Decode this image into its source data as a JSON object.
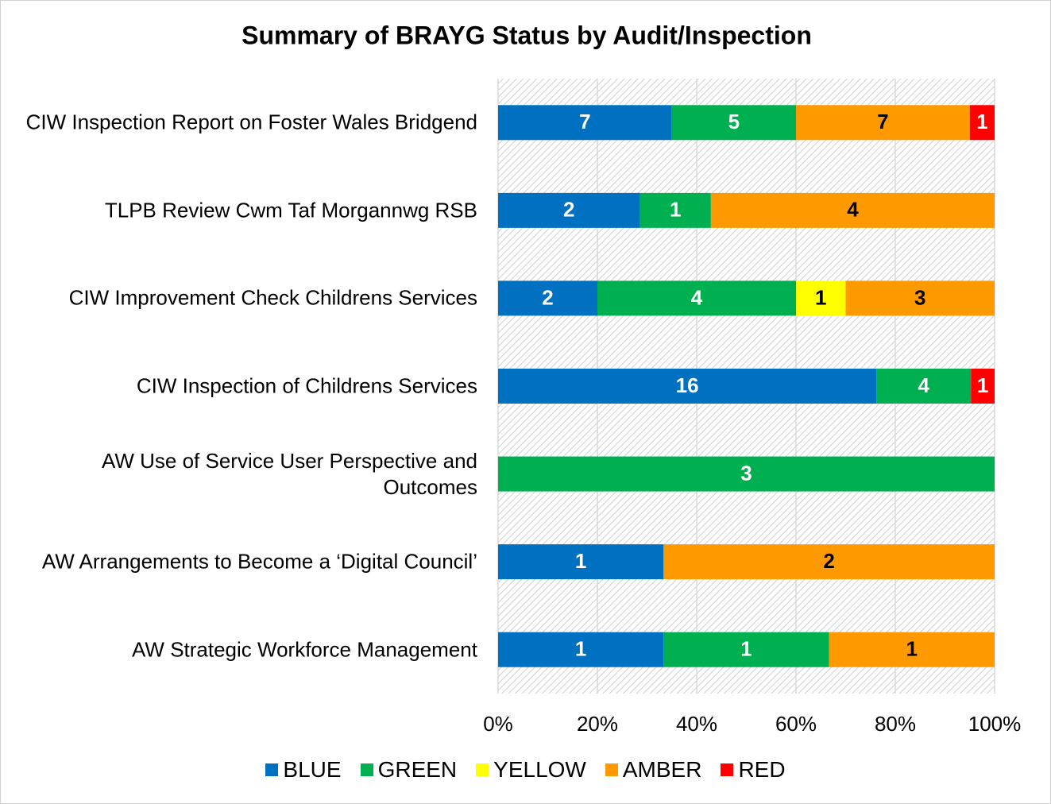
{
  "chart_data": {
    "type": "stacked_percent_bar",
    "orientation": "horizontal",
    "title": "Summary of BRAYG Status by Audit/Inspection",
    "categories": [
      "CIW Inspection Report on Foster Wales Bridgend",
      "TLPB Review Cwm Taf Morgannwg RSB",
      "CIW Improvement Check Childrens Services",
      "CIW Inspection of Childrens Services",
      "AW Use of Service User Perspective and Outcomes",
      "AW Arrangements to Become a ‘Digital Council’",
      "AW Strategic Workforce Management"
    ],
    "series": [
      {
        "name": "BLUE",
        "color": "#0070c0",
        "label_color": "#ffffff",
        "values": [
          7,
          2,
          2,
          16,
          0,
          1,
          1
        ]
      },
      {
        "name": "GREEN",
        "color": "#00b050",
        "label_color": "#ffffff",
        "values": [
          5,
          1,
          4,
          4,
          3,
          0,
          1
        ]
      },
      {
        "name": "YELLOW",
        "color": "#ffff00",
        "label_color": "#000000",
        "values": [
          0,
          0,
          1,
          0,
          0,
          0,
          0
        ]
      },
      {
        "name": "AMBER",
        "color": "#ff9900",
        "label_color": "#000000",
        "values": [
          7,
          4,
          3,
          0,
          0,
          2,
          1
        ]
      },
      {
        "name": "RED",
        "color": "#ff0000",
        "label_color": "#ffffff",
        "values": [
          1,
          0,
          0,
          1,
          0,
          0,
          0
        ]
      }
    ],
    "xlim": [
      0,
      100
    ],
    "xticks": [
      {
        "value": 0,
        "label": "0%"
      },
      {
        "value": 20,
        "label": "20%"
      },
      {
        "value": 40,
        "label": "40%"
      },
      {
        "value": 60,
        "label": "60%"
      },
      {
        "value": 80,
        "label": "80%"
      },
      {
        "value": 100,
        "label": "100%"
      }
    ],
    "grid": true,
    "legend": "bottom"
  }
}
